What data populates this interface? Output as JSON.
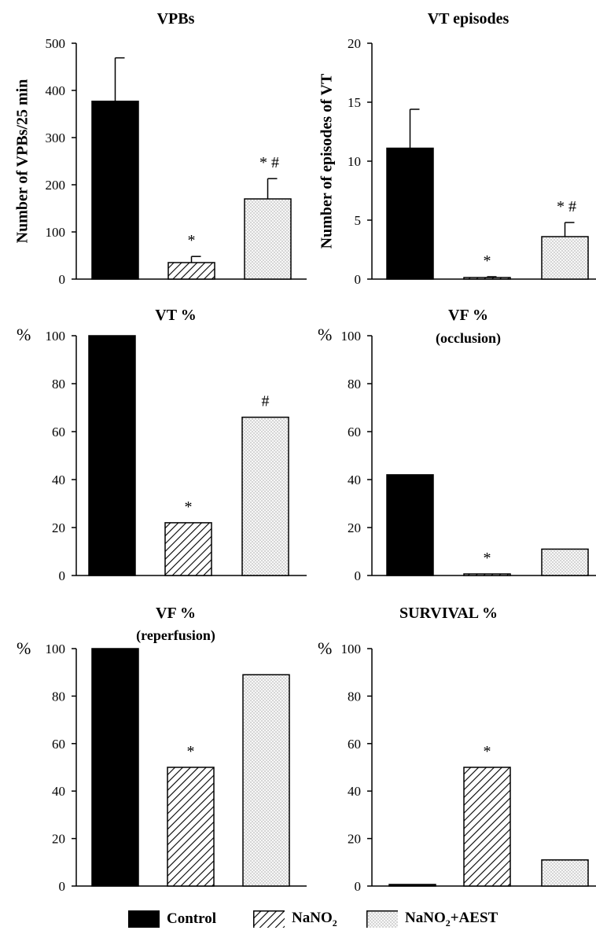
{
  "legend": {
    "control": "Control",
    "nano2_main": "NaNO",
    "nano2_sub": "2",
    "nano2aest_main": "NaNO",
    "nano2aest_sub": "2",
    "nano2aest_tail": "+AEST"
  },
  "colors": {
    "control": "#000000",
    "nano2_hatch": "#000000",
    "nano2aest_dots": "#555555",
    "background": "#ffffff"
  },
  "chart_data": [
    {
      "type": "bar",
      "panel": "VPBs",
      "title": "VPBs",
      "subtitle": "",
      "ylabel": "Number of VPBs/25 min",
      "ylim": [
        0,
        500
      ],
      "yticks": [
        "0",
        "100",
        "200",
        "300",
        "400",
        "500"
      ],
      "categories": [
        "Control",
        "NaNO2",
        "NaNO2+AEST"
      ],
      "values": [
        377,
        35,
        170
      ],
      "errors": [
        92,
        13,
        43
      ],
      "annotations": [
        "",
        "*",
        "* #"
      ]
    },
    {
      "type": "bar",
      "panel": "VT episodes",
      "title": "VT episodes",
      "subtitle": "",
      "ylabel": "Number of episodes of VT",
      "ylim": [
        0,
        20
      ],
      "yticks": [
        "0",
        "5",
        "10",
        "15",
        "20"
      ],
      "categories": [
        "Control",
        "NaNO2",
        "NaNO2+AEST"
      ],
      "values": [
        11.1,
        0.1,
        3.6
      ],
      "errors": [
        3.3,
        0.1,
        1.2
      ],
      "annotations": [
        "",
        "*",
        "* #"
      ]
    },
    {
      "type": "bar",
      "panel": "VT %",
      "title": "VT %",
      "subtitle": "",
      "ylabel": "%",
      "ylim": [
        0,
        100
      ],
      "yticks": [
        "0",
        "20",
        "40",
        "60",
        "80",
        "100"
      ],
      "categories": [
        "Control",
        "NaNO2",
        "NaNO2+AEST"
      ],
      "values": [
        100,
        22,
        66
      ],
      "annotations": [
        "",
        "*",
        "#"
      ]
    },
    {
      "type": "bar",
      "panel": "VF % (occlusion)",
      "title": "VF %",
      "subtitle": "(occlusion)",
      "ylabel": "%",
      "ylim": [
        0,
        100
      ],
      "yticks": [
        "0",
        "20",
        "40",
        "60",
        "80",
        "100"
      ],
      "categories": [
        "Control",
        "NaNO2",
        "NaNO2+AEST"
      ],
      "values": [
        42,
        0.5,
        11
      ],
      "annotations": [
        "",
        "*",
        ""
      ]
    },
    {
      "type": "bar",
      "panel": "VF % (reperfusion)",
      "title": "VF %",
      "subtitle": "(reperfusion)",
      "ylabel": "%",
      "ylim": [
        0,
        100
      ],
      "yticks": [
        "0",
        "20",
        "40",
        "60",
        "80",
        "100"
      ],
      "categories": [
        "Control",
        "NaNO2",
        "NaNO2+AEST"
      ],
      "values": [
        100,
        50,
        89
      ],
      "annotations": [
        "",
        "*",
        ""
      ]
    },
    {
      "type": "bar",
      "panel": "SURVIVAL %",
      "title": "SURVIVAL %",
      "subtitle": "",
      "ylabel": "%",
      "ylim": [
        0,
        100
      ],
      "yticks": [
        "0",
        "20",
        "40",
        "60",
        "80",
        "100"
      ],
      "categories": [
        "Control",
        "NaNO2",
        "NaNO2+AEST"
      ],
      "values": [
        0.5,
        50,
        11
      ],
      "annotations": [
        "",
        "*",
        ""
      ]
    }
  ]
}
